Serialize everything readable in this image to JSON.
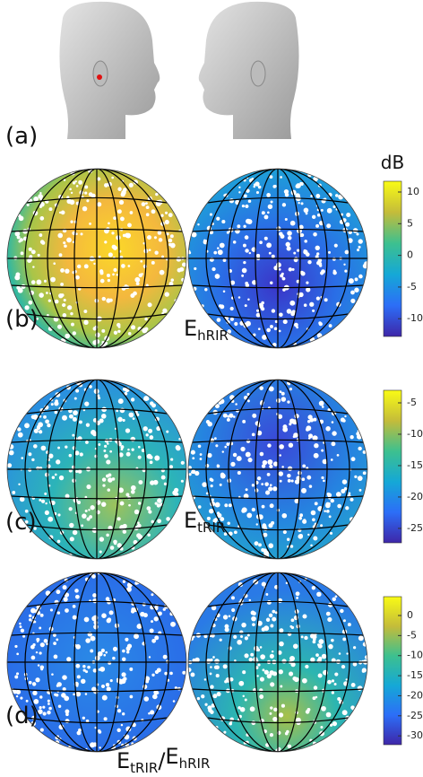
{
  "panels": [
    {
      "label": "(a)"
    },
    {
      "label": "(b)",
      "quantity": {
        "base": "E",
        "sub": "hRIR"
      },
      "colorbar": {
        "title": "dB",
        "lim": [
          -12.8,
          11.7
        ],
        "ticks": [
          10,
          5,
          0,
          -5,
          -10
        ]
      }
    },
    {
      "label": "(c)",
      "quantity": {
        "base": "E",
        "sub": "tRIR"
      },
      "colorbar": {
        "lim": [
          -27.3,
          -3
        ],
        "ticks": [
          -5,
          -10,
          -15,
          -20,
          -25
        ]
      }
    },
    {
      "label": "(d)",
      "quantity": {
        "base": "E",
        "sub": "tRIR",
        "separator": "/",
        "base2": "E",
        "sub2": "hRIR"
      },
      "colorbar": {
        "lim": [
          -32.2,
          4.7
        ],
        "ticks": [
          0,
          -5,
          -10,
          -15,
          -20,
          -25,
          -30
        ]
      }
    }
  ]
}
